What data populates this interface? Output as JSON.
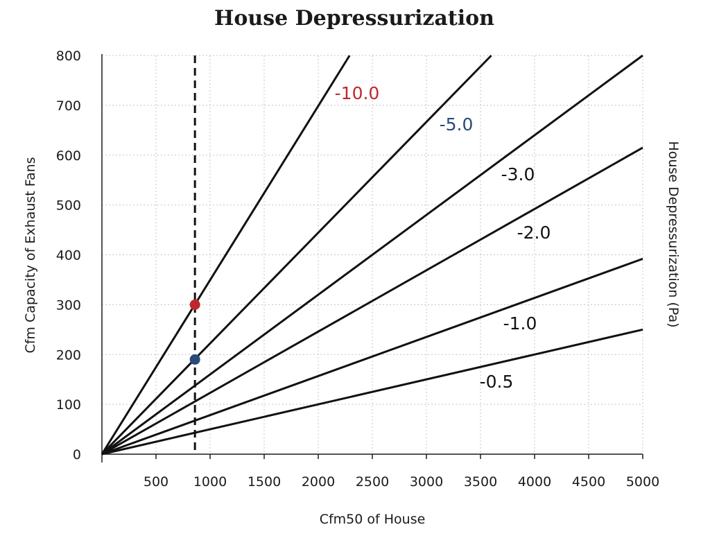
{
  "chart_data": {
    "type": "line",
    "title": "House Depressurization",
    "xlabel": "Cfm50 of House",
    "ylabel": "Cfm Capacity of Exhaust Fans",
    "y2label": "House Depressurization (Pa)",
    "xlim": [
      0,
      5000
    ],
    "ylim": [
      0,
      800
    ],
    "x_ticks": [
      "500",
      "1000",
      "1500",
      "2000",
      "2500",
      "3000",
      "3500",
      "4000",
      "4500",
      "5000"
    ],
    "y_ticks": [
      "0",
      "100",
      "200",
      "300",
      "400",
      "500",
      "600",
      "700",
      "800"
    ],
    "grid": true,
    "series": [
      {
        "name": "-10.0",
        "x": [
          0,
          2290
        ],
        "y": [
          0,
          800
        ],
        "color": "#c0272d"
      },
      {
        "name": "-5.0",
        "x": [
          0,
          3600
        ],
        "y": [
          0,
          800
        ],
        "color": "#2a4a78"
      },
      {
        "name": "-3.0",
        "x": [
          0,
          5000
        ],
        "y": [
          0,
          800
        ],
        "color": "#111111"
      },
      {
        "name": "-2.0",
        "x": [
          0,
          5000
        ],
        "y": [
          0,
          615
        ],
        "color": "#111111"
      },
      {
        "name": "-1.0",
        "x": [
          0,
          5000
        ],
        "y": [
          0,
          392
        ],
        "color": "#111111"
      },
      {
        "name": "-0.5",
        "x": [
          0,
          5000
        ],
        "y": [
          0,
          250
        ],
        "color": "#111111"
      }
    ],
    "reference_line": {
      "x": 860,
      "style": "dashed"
    },
    "points": [
      {
        "x": 860,
        "y": 300,
        "color": "#c0272d"
      },
      {
        "x": 860,
        "y": 190,
        "color": "#2a4a78"
      }
    ]
  }
}
